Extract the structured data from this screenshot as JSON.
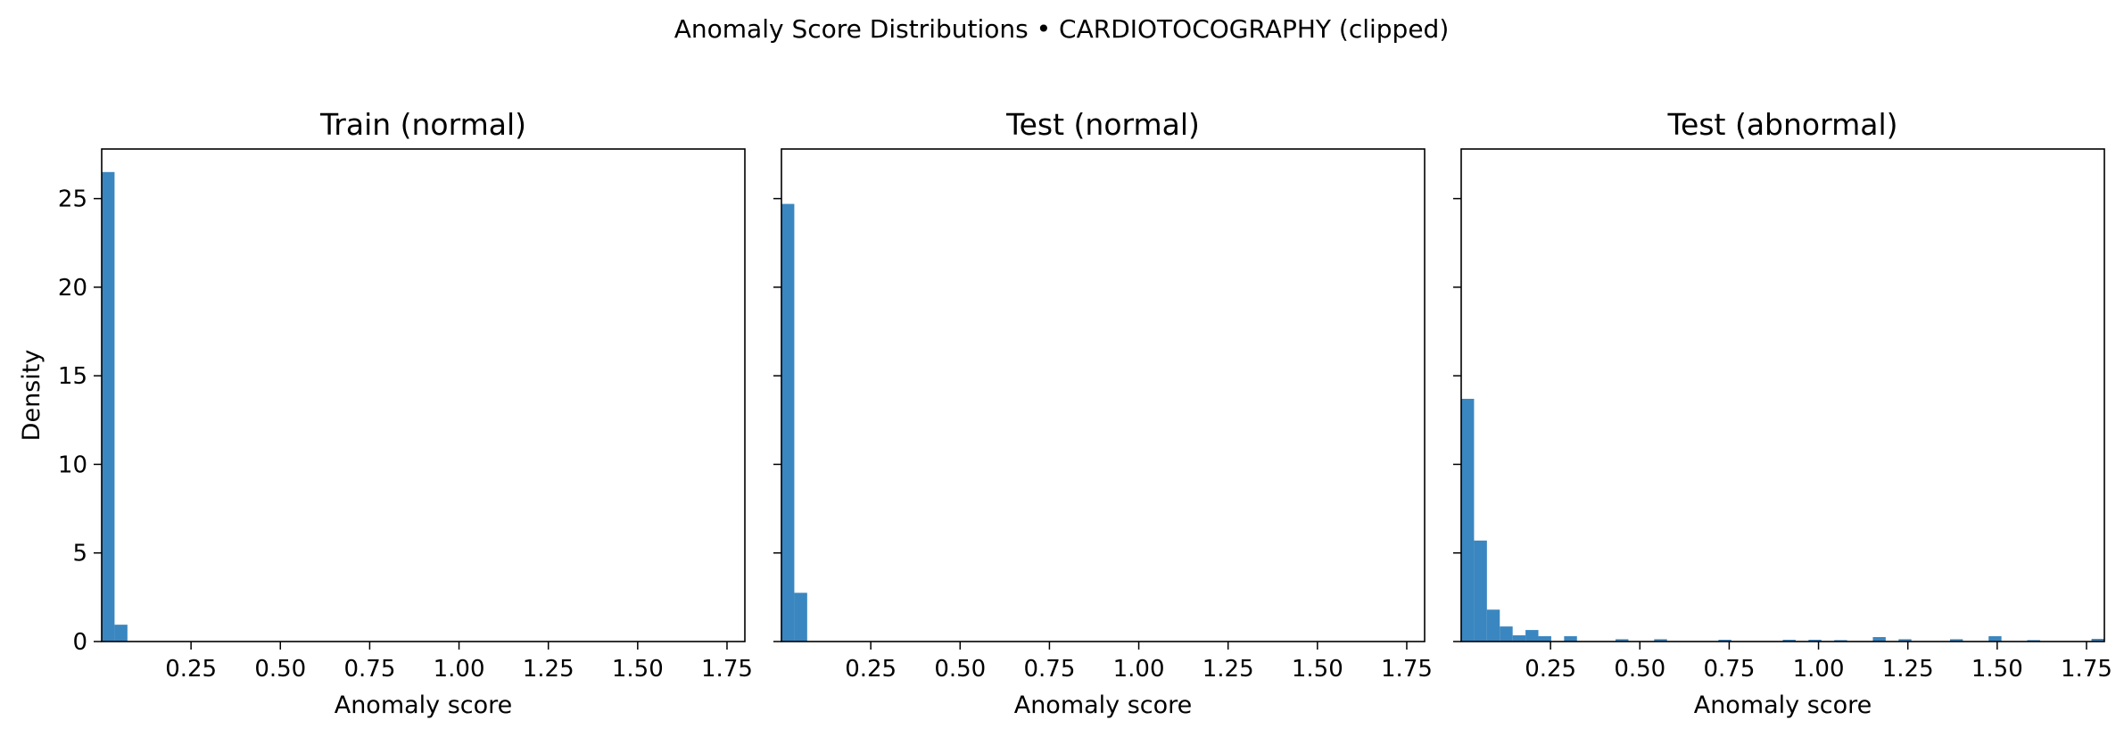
{
  "figure": {
    "suptitle": "Anomaly Score Distributions • CARDIOTOCOGRAPHY (clipped)"
  },
  "colors": {
    "bar": "#3a86c0",
    "axes": "#000000",
    "background": "#ffffff"
  },
  "chart_data": [
    {
      "type": "bar",
      "title": "Train (normal)",
      "xlabel": "Anomaly score",
      "ylabel": "Density",
      "xlim": [
        0.0,
        1.8
      ],
      "ylim": [
        0,
        27.8
      ],
      "bin_width": 0.036,
      "xticks": [
        "0.25",
        "0.50",
        "0.75",
        "1.00",
        "1.25",
        "1.50",
        "1.75"
      ],
      "yticks": [
        "0",
        "5",
        "10",
        "15",
        "20",
        "25"
      ],
      "bins": [
        [
          0.0,
          26.5
        ],
        [
          0.036,
          0.95
        ]
      ]
    },
    {
      "type": "bar",
      "title": "Test (normal)",
      "xlabel": "Anomaly score",
      "ylabel": "",
      "xlim": [
        0.0,
        1.8
      ],
      "ylim": [
        0,
        27.8
      ],
      "bin_width": 0.036,
      "xticks": [
        "0.25",
        "0.50",
        "0.75",
        "1.00",
        "1.25",
        "1.50",
        "1.75"
      ],
      "yticks": [],
      "bins": [
        [
          0.0,
          24.7
        ],
        [
          0.036,
          2.75
        ]
      ]
    },
    {
      "type": "bar",
      "title": "Test (abnormal)",
      "xlabel": "Anomaly score",
      "ylabel": "",
      "xlim": [
        0.0,
        1.8
      ],
      "ylim": [
        0,
        27.8
      ],
      "bin_width": 0.036,
      "xticks": [
        "0.25",
        "0.50",
        "0.75",
        "1.00",
        "1.25",
        "1.50",
        "1.75"
      ],
      "yticks": [],
      "bins": [
        [
          0.0,
          13.7
        ],
        [
          0.036,
          5.7
        ],
        [
          0.072,
          1.8
        ],
        [
          0.108,
          0.85
        ],
        [
          0.144,
          0.35
        ],
        [
          0.18,
          0.65
        ],
        [
          0.216,
          0.3
        ],
        [
          0.288,
          0.3
        ],
        [
          0.432,
          0.13
        ],
        [
          0.54,
          0.13
        ],
        [
          0.72,
          0.1
        ],
        [
          0.9,
          0.1
        ],
        [
          0.972,
          0.1
        ],
        [
          1.044,
          0.08
        ],
        [
          1.152,
          0.25
        ],
        [
          1.224,
          0.13
        ],
        [
          1.368,
          0.13
        ],
        [
          1.476,
          0.3
        ],
        [
          1.584,
          0.08
        ],
        [
          1.764,
          0.15
        ]
      ]
    }
  ]
}
